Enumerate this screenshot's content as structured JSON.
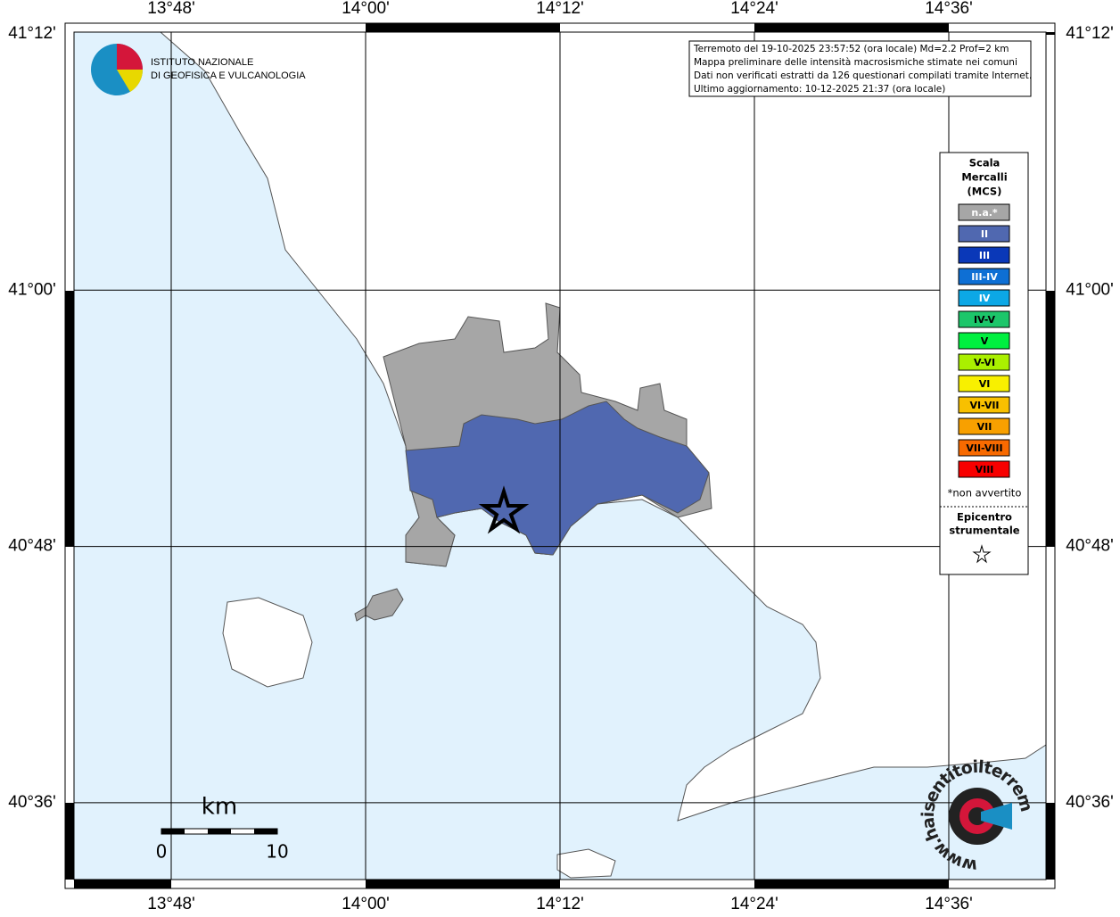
{
  "lon_labels": [
    "13°48'",
    "14°00'",
    "14°12'",
    "14°24'",
    "14°36'"
  ],
  "lat_labels": [
    "41°12'",
    "41°00'",
    "40°48'",
    "40°36'"
  ],
  "logo": {
    "line1": "ISTITUTO NAZIONALE",
    "line2": "DI GEOFISICA E VULCANOLOGIA"
  },
  "info": [
    "Terremoto del 19-10-2025 23:57:52 (ora locale) Md=2.2 Prof=2 km",
    "Mappa preliminare delle intensità macrosismiche stimate nei comuni",
    "Dati non verificati estratti da 126 questionari compilati tramite Internet.",
    "Ultimo aggiornamento: 10-12-2025 21:37 (ora locale)"
  ],
  "legend": {
    "title": [
      "Scala",
      "Mercalli",
      "(MCS)"
    ],
    "items": [
      {
        "label": "n.a.*",
        "color": "#a6a6a6"
      },
      {
        "label": "II",
        "color": "#5068b0"
      },
      {
        "label": "III",
        "color": "#0a38b8"
      },
      {
        "label": "III-IV",
        "color": "#0e6fd4"
      },
      {
        "label": "IV",
        "color": "#0ca8e6"
      },
      {
        "label": "IV-V",
        "color": "#1cc66a"
      },
      {
        "label": "V",
        "color": "#00f040"
      },
      {
        "label": "V-VI",
        "color": "#aaf000"
      },
      {
        "label": "VI",
        "color": "#f8f000"
      },
      {
        "label": "VI-VII",
        "color": "#f8c000"
      },
      {
        "label": "VII",
        "color": "#f8a000"
      },
      {
        "label": "VII-VIII",
        "color": "#f86a00"
      },
      {
        "label": "VIII",
        "color": "#f80000"
      }
    ],
    "note": "*non avvertito",
    "epicenter": [
      "Epicentro",
      "strumentale"
    ]
  },
  "scale_bar": {
    "unit": "km",
    "start": "0",
    "end": "10"
  },
  "site_logo": "www.haisentitoilterremoto.it"
}
